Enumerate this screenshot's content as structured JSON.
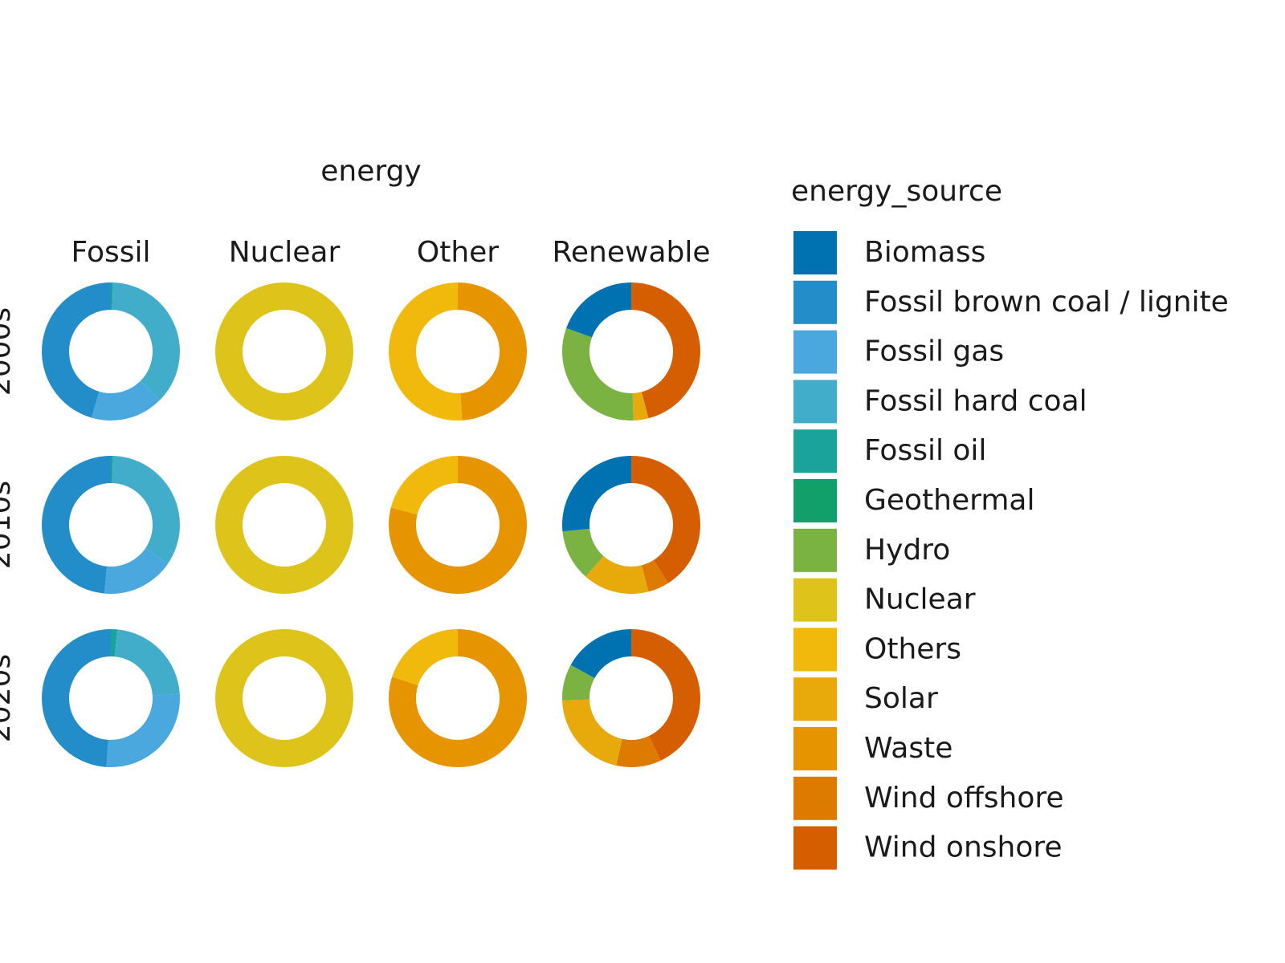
{
  "chart_data": {
    "type": "donut",
    "column_title": "energy",
    "legend_title": "energy_source",
    "columns": [
      "Fossil",
      "Nuclear",
      "Other",
      "Renewable"
    ],
    "rows": [
      "2000s",
      "2010s",
      "2020s"
    ],
    "series": [
      {
        "name": "Biomass",
        "color": "#0072B2",
        "values": [
          null,
          null,
          null,
          19.5,
          null,
          null,
          null,
          26.5,
          null,
          null,
          null,
          17
        ]
      },
      {
        "name": "Fossil brown coal / lignite",
        "color": "#238DC9",
        "values": [
          45.5,
          null,
          null,
          null,
          48.5,
          null,
          null,
          null,
          49,
          null,
          null,
          null
        ]
      },
      {
        "name": "Fossil gas",
        "color": "#4AA8DF",
        "values": [
          17,
          null,
          null,
          null,
          17,
          null,
          null,
          null,
          27,
          null,
          null,
          null
        ]
      },
      {
        "name": "Fossil hard coal",
        "color": "#42ADCB",
        "values": [
          37,
          null,
          null,
          null,
          34,
          null,
          null,
          null,
          22.5,
          null,
          null,
          null
        ]
      },
      {
        "name": "Fossil oil",
        "color": "#1AA39A",
        "values": [
          0.5,
          null,
          null,
          null,
          0.5,
          null,
          null,
          null,
          1.5,
          null,
          null,
          null
        ]
      },
      {
        "name": "Geothermal",
        "color": "#12A06A",
        "values": [
          null,
          null,
          null,
          null,
          null,
          null,
          null,
          null,
          null,
          null,
          null,
          null
        ]
      },
      {
        "name": "Hydro",
        "color": "#7AB342",
        "values": [
          null,
          null,
          null,
          31,
          null,
          null,
          null,
          12,
          null,
          null,
          null,
          8.5
        ]
      },
      {
        "name": "Nuclear",
        "color": "#DDC31A",
        "values": [
          null,
          100,
          null,
          null,
          null,
          100,
          null,
          null,
          null,
          100,
          null,
          null
        ]
      },
      {
        "name": "Others",
        "color": "#F0B90B",
        "values": [
          null,
          null,
          51,
          null,
          null,
          null,
          21,
          null,
          null,
          null,
          20,
          null
        ]
      },
      {
        "name": "Solar",
        "color": "#E8A90A",
        "values": [
          null,
          null,
          null,
          3.5,
          null,
          null,
          null,
          15.5,
          null,
          null,
          null,
          21
        ]
      },
      {
        "name": "Waste",
        "color": "#E69500",
        "values": [
          null,
          null,
          49,
          null,
          null,
          null,
          79,
          null,
          null,
          null,
          80,
          null
        ]
      },
      {
        "name": "Wind offshore",
        "color": "#DD7A00",
        "values": [
          null,
          null,
          null,
          null,
          null,
          null,
          null,
          5,
          null,
          null,
          null,
          10.5
        ]
      },
      {
        "name": "Wind onshore",
        "color": "#D55E00",
        "values": [
          null,
          null,
          null,
          46,
          null,
          null,
          null,
          41,
          null,
          null,
          null,
          43
        ]
      }
    ]
  }
}
